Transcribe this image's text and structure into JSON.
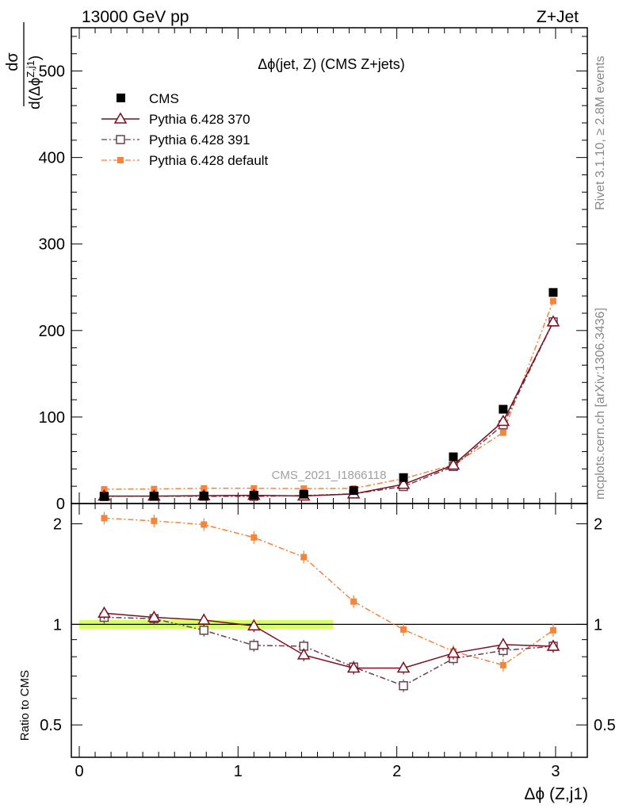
{
  "header": {
    "energy_label": "13000 GeV pp",
    "process_label": "Z+Jet"
  },
  "side_labels": {
    "rivet": "Rivet 3.1.10, ≥ 2.8M events",
    "mcplots": "mcplots.cern.ch [arXiv:1306.3436]"
  },
  "watermark": "CMS_2021_I1866118",
  "colors": {
    "cms": "#000000",
    "pythia_370": "#7f0d1f",
    "pythia_391": "#684050",
    "pythia_default": "#f5843c",
    "band": "#ccff33"
  },
  "chart_data": [
    {
      "type": "line",
      "panel": "main",
      "title": "Δϕ(jet, Z) (CMS Z+jets)",
      "ylabel_num": "dσ",
      "ylabel_den": "d(Δϕ",
      "ylabel_sup": "Z,j1",
      "ylabel_close": ")",
      "ylim": [
        0,
        550
      ],
      "xlim": [
        -0.05,
        3.2
      ],
      "yticks": [
        0,
        100,
        200,
        300,
        400,
        500
      ],
      "ytick_labels": [
        "0",
        "100",
        "200",
        "300",
        "400",
        "500"
      ],
      "x": [
        0.157,
        0.471,
        0.785,
        1.1,
        1.414,
        1.728,
        2.042,
        2.356,
        2.67,
        2.985
      ],
      "series": [
        {
          "name": "CMS",
          "marker": "square-filled",
          "line": "none",
          "values": [
            8,
            8.2,
            8.8,
            9.6,
            10.8,
            15,
            30,
            54,
            109,
            244
          ]
        },
        {
          "name": "Pythia 6.428 370",
          "marker": "triangle-open",
          "line": "solid",
          "values": [
            8.6,
            8.6,
            9.1,
            9.5,
            8.7,
            11.1,
            22.2,
            44.5,
            95,
            210
          ]
        },
        {
          "name": "Pythia 6.428 391",
          "marker": "square-open",
          "line": "dashdot",
          "values": [
            8.4,
            8.5,
            8.4,
            8.3,
            9.2,
            11.2,
            19.7,
            42.8,
            91,
            210
          ]
        },
        {
          "name": "Pythia 6.428 default",
          "marker": "square-small-filled",
          "line": "dashdot",
          "values": [
            16.6,
            16.8,
            17.6,
            17.6,
            17.3,
            17.5,
            28.8,
            44.8,
            82,
            234
          ]
        }
      ]
    },
    {
      "type": "line",
      "panel": "ratio",
      "ylabel": "Ratio to CMS",
      "xlabel": "Δϕ (Z,j1)",
      "ylim": [
        0.4,
        2.3
      ],
      "yscale": "log",
      "xlim": [
        -0.05,
        3.2
      ],
      "xticks": [
        0,
        1,
        2,
        3
      ],
      "xtick_labels": [
        "0",
        "1",
        "2",
        "3"
      ],
      "yticks": [
        0.5,
        1,
        2
      ],
      "ytick_labels": [
        "0.5",
        "1",
        "2"
      ],
      "ytick_labels_right": [
        "0.5",
        "1",
        "2"
      ],
      "reference_band": {
        "x_range": [
          0,
          1.6
        ],
        "low": 0.97,
        "high": 1.03
      },
      "x": [
        0.157,
        0.471,
        0.785,
        1.1,
        1.414,
        1.728,
        2.042,
        2.356,
        2.67,
        2.985
      ],
      "series": [
        {
          "name": "Pythia 6.428 370",
          "values": [
            1.08,
            1.05,
            1.03,
            0.99,
            0.81,
            0.74,
            0.74,
            0.82,
            0.87,
            0.86
          ]
        },
        {
          "name": "Pythia 6.428 391",
          "values": [
            1.05,
            1.04,
            0.96,
            0.865,
            0.86,
            0.745,
            0.655,
            0.79,
            0.835,
            0.86
          ]
        },
        {
          "name": "Pythia 6.428 default",
          "values": [
            2.08,
            2.04,
            1.99,
            1.82,
            1.59,
            1.17,
            0.965,
            0.83,
            0.755,
            0.96
          ]
        }
      ]
    }
  ]
}
